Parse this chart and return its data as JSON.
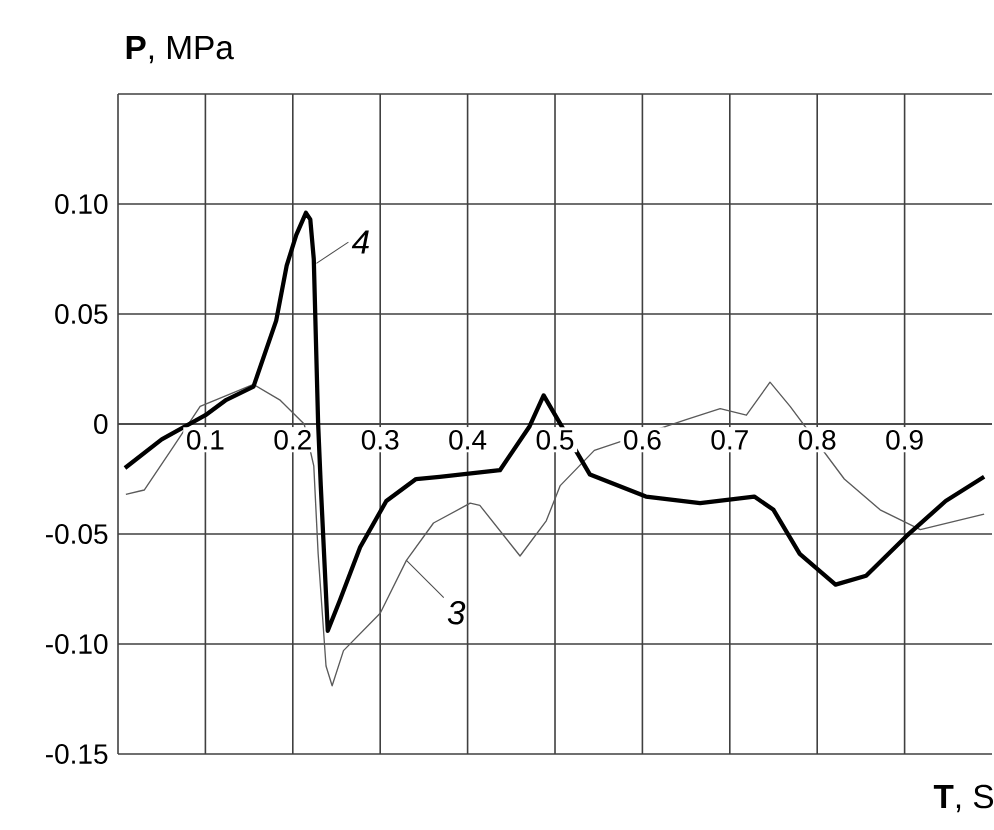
{
  "chart_data": {
    "type": "line",
    "xlabel": "**T**, S",
    "ylabel": "**P**, MPa",
    "xlim": [
      0,
      1.0
    ],
    "ylim": [
      -0.15,
      0.15
    ],
    "xticks": [
      0.1,
      0.2,
      0.3,
      0.4,
      0.5,
      0.6,
      0.7,
      0.8,
      0.9
    ],
    "yticks": [
      -0.15,
      {
        "value": -0.1,
        "label": "-0.10"
      },
      -0.05,
      0,
      0.05,
      {
        "value": 0.1,
        "label": "0.10"
      },
      {
        "value": 0.15,
        "label": null
      }
    ],
    "grid": true,
    "marker": "none",
    "line_style": "solid",
    "series": [
      {
        "color": "#5a5a5a",
        "x": [
          0.009,
          0.03,
          0.064,
          0.094,
          0.155,
          0.185,
          0.213,
          0.224,
          0.229,
          0.238,
          0.245,
          0.258,
          0.3,
          0.33,
          0.361,
          0.403,
          0.414,
          0.46,
          0.49,
          0.506,
          0.545,
          0.604,
          0.65,
          0.689,
          0.719,
          0.746,
          0.769,
          0.796,
          0.831,
          0.872,
          0.918,
          0.991
        ],
        "values": [
          -0.032,
          -0.03,
          -0.01,
          0.008,
          0.018,
          0.011,
          0.0,
          -0.019,
          -0.059,
          -0.11,
          -0.119,
          -0.103,
          -0.086,
          -0.062,
          -0.045,
          -0.036,
          -0.037,
          -0.06,
          -0.044,
          -0.028,
          -0.012,
          null,
          0.002,
          0.007,
          0.004,
          0.019,
          0.008,
          null,
          -0.025,
          -0.039,
          -0.048,
          -0.041
        ]
      },
      {
        "color": "#000000",
        "x": [
          0.008,
          0.05,
          0.1,
          0.124,
          0.155,
          0.181,
          0.193,
          0.204,
          0.215,
          0.22,
          0.224,
          0.229,
          0.232,
          0.24,
          0.254,
          0.277,
          0.307,
          0.341,
          0.368,
          0.437,
          0.471,
          0.487,
          0.51,
          0.54,
          0.604,
          0.666,
          0.728,
          0.75,
          0.78,
          0.821,
          0.856,
          0.902,
          0.947,
          0.991
        ],
        "values": [
          -0.02,
          -0.007,
          0.004,
          0.011,
          0.017,
          0.047,
          0.072,
          0.086,
          0.096,
          0.093,
          0.075,
          0.0,
          -0.028,
          -0.094,
          -0.08,
          -0.056,
          -0.035,
          -0.025,
          -0.024,
          -0.021,
          -0.001,
          0.013,
          null,
          -0.023,
          -0.033,
          -0.036,
          -0.033,
          -0.039,
          -0.059,
          -0.073,
          -0.069,
          -0.051,
          -0.035,
          -0.024
        ]
      }
    ],
    "annotations": [
      {
        "text": "3",
        "x": 0.33,
        "y": -0.062
      },
      {
        "text": "4",
        "x": 0.227,
        "y": 0.073
      }
    ]
  }
}
